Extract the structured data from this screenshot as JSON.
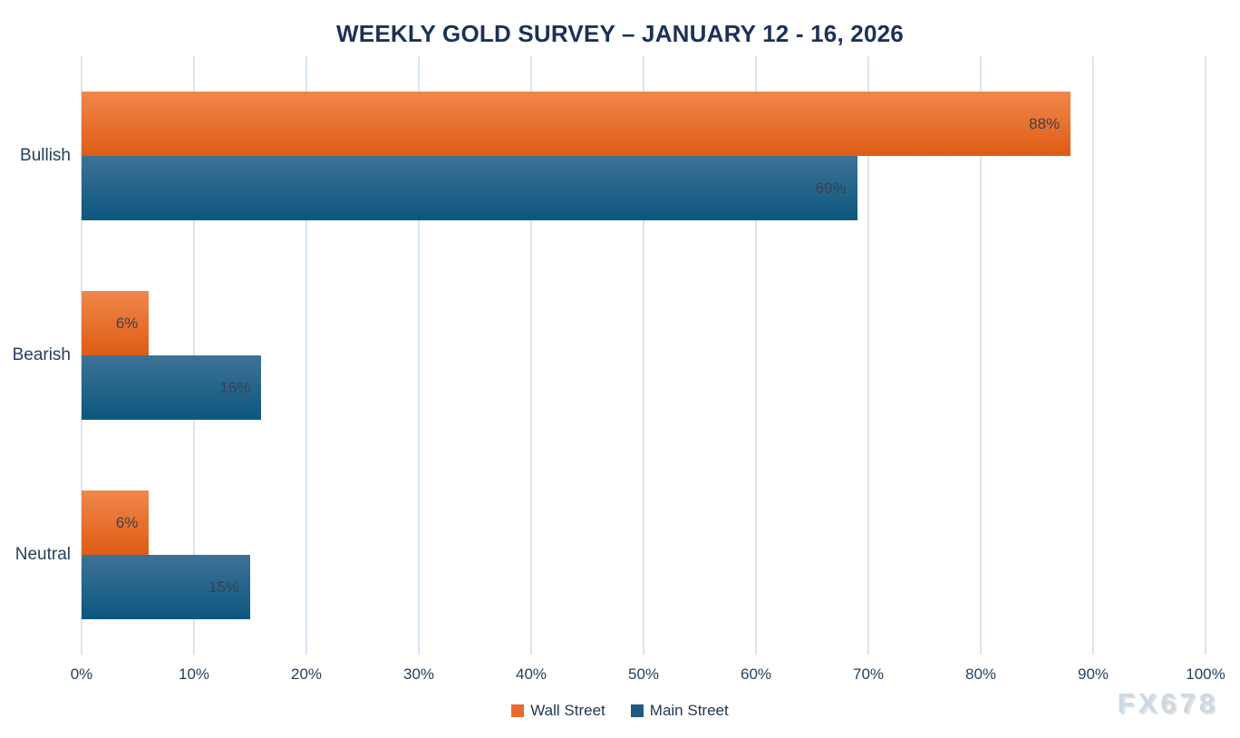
{
  "chart_data": {
    "type": "bar",
    "orientation": "horizontal",
    "title": "WEEKLY GOLD SURVEY – JANUARY 12 - 16, 2026",
    "categories": [
      "Bullish",
      "Bearish",
      "Neutral"
    ],
    "series": [
      {
        "name": "Wall Street",
        "values": [
          88,
          6,
          6
        ],
        "gradient_top": "#f0874b",
        "gradient_bottom": "#de5c14",
        "legend_color": "#e96a2e"
      },
      {
        "name": "Main Street",
        "values": [
          69,
          16,
          15
        ],
        "gradient_top": "#3e7298",
        "gradient_bottom": "#0c577e",
        "legend_color": "#1e5b80"
      }
    ],
    "value_suffix": "%",
    "xlim": [
      0,
      100
    ],
    "x_ticks": [
      "0%",
      "10%",
      "20%",
      "30%",
      "40%",
      "50%",
      "60%",
      "70%",
      "80%",
      "90%",
      "100%"
    ],
    "grid": true,
    "gridline_color": "#d9e5f1",
    "legend_position": "bottom",
    "watermark": "FX678"
  }
}
